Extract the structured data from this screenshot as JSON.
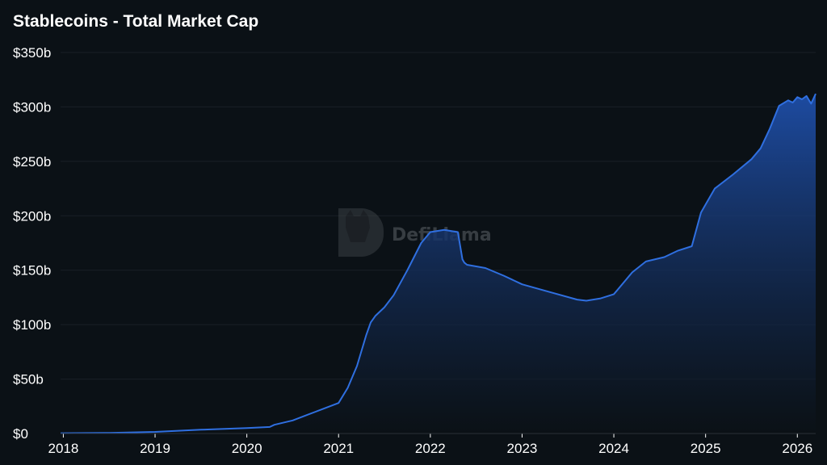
{
  "chart_data": {
    "type": "area",
    "title": "Stablecoins - Total Market Cap",
    "xlabel": "",
    "ylabel": "",
    "grid": true,
    "watermark": "DefiLlama",
    "colors": {
      "line": "#2f6fe0",
      "fill_top": "#1e4ea8",
      "fill_bottom": "#0b1116",
      "background": "#0b1116",
      "grid": "#1a2026"
    },
    "xlim": [
      2017.97,
      2026.2
    ],
    "ylim": [
      0,
      350
    ],
    "y_ticks": [
      {
        "value": 0,
        "label": "$0"
      },
      {
        "value": 50,
        "label": "$50b"
      },
      {
        "value": 100,
        "label": "$100b"
      },
      {
        "value": 150,
        "label": "$150b"
      },
      {
        "value": 200,
        "label": "$200b"
      },
      {
        "value": 250,
        "label": "$250b"
      },
      {
        "value": 300,
        "label": "$300b"
      },
      {
        "value": 350,
        "label": "$350b"
      }
    ],
    "x_ticks": [
      {
        "value": 2018,
        "label": "2018"
      },
      {
        "value": 2019,
        "label": "2019"
      },
      {
        "value": 2020,
        "label": "2020"
      },
      {
        "value": 2021,
        "label": "2021"
      },
      {
        "value": 2022,
        "label": "2022"
      },
      {
        "value": 2023,
        "label": "2023"
      },
      {
        "value": 2024,
        "label": "2024"
      },
      {
        "value": 2025,
        "label": "2025"
      },
      {
        "value": 2026,
        "label": "2026"
      }
    ],
    "series": [
      {
        "name": "",
        "x": [
          2017.97,
          2018.5,
          2019.0,
          2019.5,
          2020.0,
          2020.25,
          2020.3,
          2020.5,
          2020.75,
          2021.0,
          2021.1,
          2021.2,
          2021.3,
          2021.35,
          2021.4,
          2021.5,
          2021.6,
          2021.75,
          2021.9,
          2022.0,
          2022.15,
          2022.3,
          2022.35,
          2022.37,
          2022.4,
          2022.6,
          2022.8,
          2023.0,
          2023.3,
          2023.6,
          2023.7,
          2023.85,
          2024.0,
          2024.2,
          2024.35,
          2024.55,
          2024.7,
          2024.85,
          2024.95,
          2025.1,
          2025.3,
          2025.5,
          2025.6,
          2025.7,
          2025.8,
          2025.9,
          2025.95,
          2026.0,
          2026.05,
          2026.1,
          2026.15,
          2026.2
        ],
        "y": [
          0.3,
          0.6,
          1.5,
          3.5,
          5,
          6,
          8,
          12,
          20,
          28,
          42,
          62,
          90,
          102,
          108,
          116,
          127,
          150,
          175,
          185,
          187,
          185,
          160,
          157,
          155,
          152,
          145,
          137,
          130,
          123,
          122,
          124,
          128,
          148,
          158,
          162,
          168,
          172,
          203,
          225,
          238,
          252,
          262,
          280,
          301,
          306,
          304,
          309,
          307,
          310,
          303,
          312
        ]
      }
    ]
  }
}
